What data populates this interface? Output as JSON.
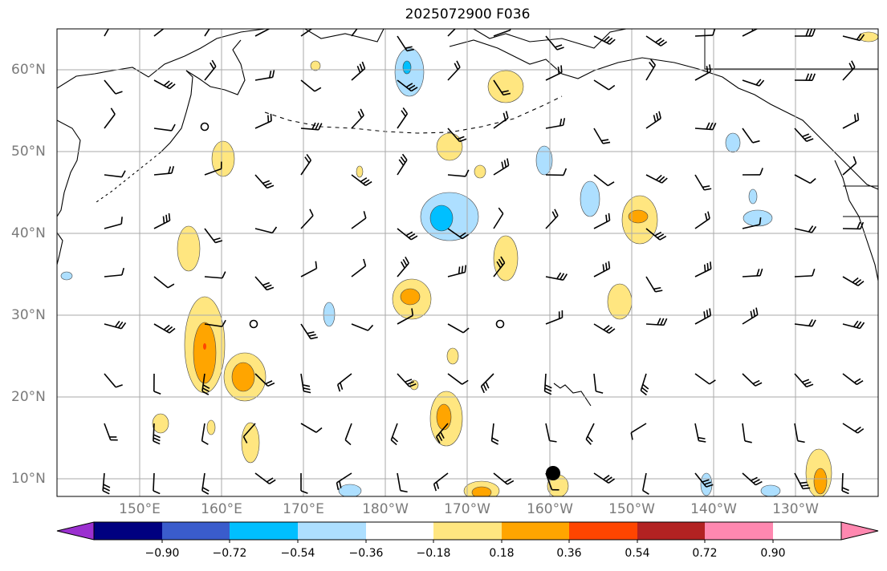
{
  "title": "2025072900 F036",
  "lat_labels": [
    "60°N",
    "50°N",
    "40°N",
    "30°N",
    "20°N",
    "10°N"
  ],
  "lon_labels": [
    "150°E",
    "160°E",
    "170°E",
    "180°W",
    "170°W",
    "160°W",
    "150°W",
    "140°W",
    "130°W"
  ],
  "colorbar": {
    "tick_labels": [
      "−0.90",
      "−0.72",
      "−0.54",
      "−0.36",
      "−0.18",
      "0.18",
      "0.36",
      "0.54",
      "0.72",
      "0.90"
    ],
    "colors": [
      "#9b30d0",
      "#000080",
      "#3a5ccc",
      "#00bfff",
      "#addfff",
      "#ffffff",
      "#ffe680",
      "#ffa500",
      "#ff4500",
      "#b22222",
      "#ff88b0"
    ]
  }
}
